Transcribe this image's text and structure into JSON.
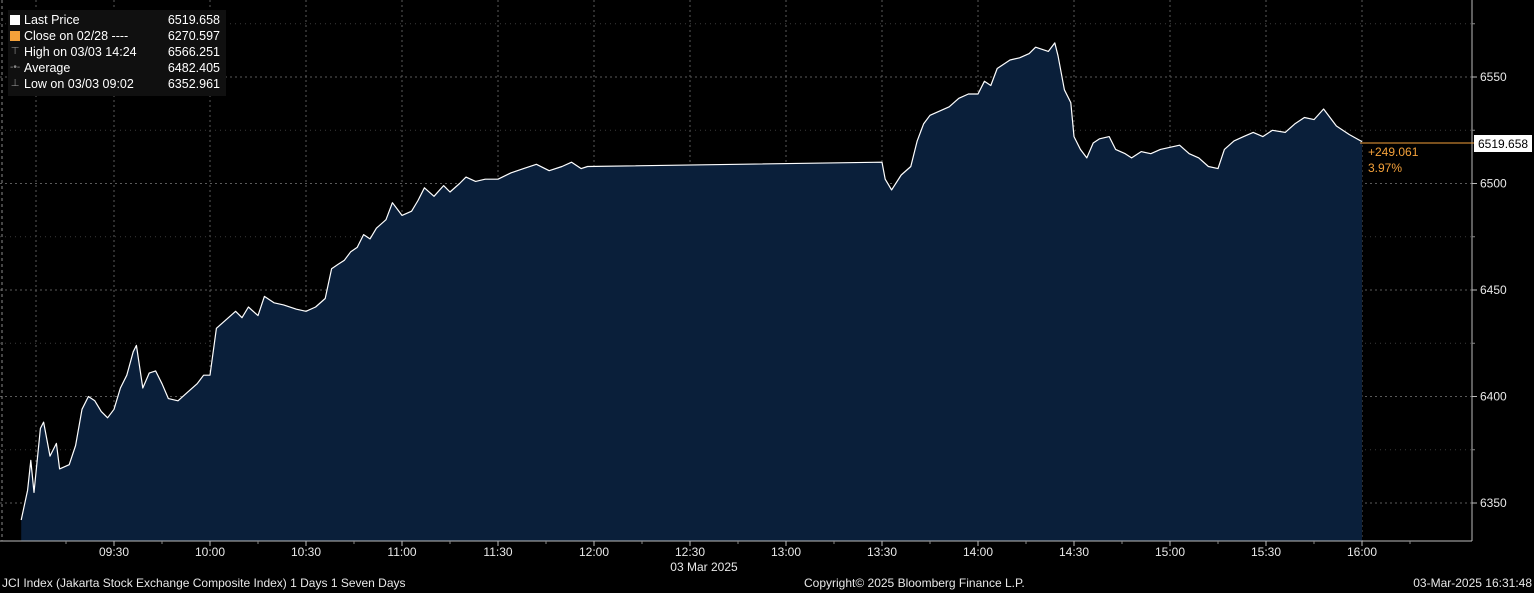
{
  "legend": {
    "last_price_label": "Last Price",
    "last_price_value": "6519.658",
    "close_label": "Close on 02/28 ----",
    "close_value": "6270.597",
    "high_label": "High on 03/03 14:24",
    "high_value": "6566.251",
    "average_label": "Average",
    "average_value": "6482.405",
    "low_label": "Low on 03/03 09:02",
    "low_value": "6352.961"
  },
  "annotations": {
    "last_price_tag": "6519.658",
    "change_value": "+249.061",
    "change_pct": "3.97%"
  },
  "footer": {
    "left": "JCI Index (Jakarta Stock Exchange Composite Index) 1 Days 1 Seven Days",
    "center": "Copyright© 2025 Bloomberg Finance L.P.",
    "right": "03-Mar-2025 16:31:48"
  },
  "colors": {
    "background": "#000000",
    "line": "#ffffff",
    "area_fill": "#0a1f3a",
    "grid": "#5a5a5a",
    "orange": "#f4a13a"
  },
  "chart_data": {
    "type": "area",
    "xlabel": "03 Mar 2025",
    "x_ticks": [
      "09:30",
      "10:00",
      "10:30",
      "11:00",
      "11:30",
      "12:00",
      "12:30",
      "13:00",
      "13:30",
      "14:00",
      "14:30",
      "15:00",
      "15:30",
      "16:00"
    ],
    "y_ticks": [
      6350,
      6400,
      6450,
      6500,
      6550
    ],
    "ylim": [
      6332,
      6580
    ],
    "grid": true,
    "legend_position": "top-left",
    "series": [
      {
        "name": "Last Price",
        "points": [
          [
            "09:01",
            6342
          ],
          [
            "09:03",
            6356
          ],
          [
            "09:04",
            6370
          ],
          [
            "09:05",
            6355
          ],
          [
            "09:07",
            6385
          ],
          [
            "09:08",
            6388
          ],
          [
            "09:10",
            6372
          ],
          [
            "09:12",
            6378
          ],
          [
            "09:13",
            6366
          ],
          [
            "09:16",
            6368
          ],
          [
            "09:18",
            6377
          ],
          [
            "09:20",
            6394
          ],
          [
            "09:22",
            6400
          ],
          [
            "09:24",
            6398
          ],
          [
            "09:26",
            6393
          ],
          [
            "09:28",
            6390
          ],
          [
            "09:30",
            6394
          ],
          [
            "09:32",
            6404
          ],
          [
            "09:34",
            6410
          ],
          [
            "09:36",
            6421
          ],
          [
            "09:37",
            6424
          ],
          [
            "09:39",
            6404
          ],
          [
            "09:41",
            6411
          ],
          [
            "09:43",
            6412
          ],
          [
            "09:45",
            6406
          ],
          [
            "09:47",
            6399
          ],
          [
            "09:50",
            6398
          ],
          [
            "09:53",
            6402
          ],
          [
            "09:56",
            6406
          ],
          [
            "09:58",
            6410
          ],
          [
            "10:00",
            6410
          ],
          [
            "10:02",
            6432
          ],
          [
            "10:05",
            6436
          ],
          [
            "10:08",
            6440
          ],
          [
            "10:10",
            6437
          ],
          [
            "10:12",
            6442
          ],
          [
            "10:15",
            6438
          ],
          [
            "10:17",
            6447
          ],
          [
            "10:20",
            6444
          ],
          [
            "10:23",
            6443
          ],
          [
            "10:27",
            6441
          ],
          [
            "10:30",
            6440
          ],
          [
            "10:33",
            6442
          ],
          [
            "10:36",
            6446
          ],
          [
            "10:38",
            6460
          ],
          [
            "10:40",
            6462
          ],
          [
            "10:42",
            6464
          ],
          [
            "10:44",
            6468
          ],
          [
            "10:46",
            6470
          ],
          [
            "10:48",
            6476
          ],
          [
            "10:50",
            6474
          ],
          [
            "10:52",
            6479
          ],
          [
            "10:55",
            6483
          ],
          [
            "10:57",
            6491
          ],
          [
            "11:00",
            6485
          ],
          [
            "11:03",
            6487
          ],
          [
            "11:05",
            6492
          ],
          [
            "11:07",
            6498
          ],
          [
            "11:10",
            6494
          ],
          [
            "11:13",
            6499
          ],
          [
            "11:15",
            6496
          ],
          [
            "11:18",
            6500
          ],
          [
            "11:20",
            6503
          ],
          [
            "11:23",
            6501
          ],
          [
            "11:26",
            6502
          ],
          [
            "11:30",
            6502
          ],
          [
            "11:34",
            6505
          ],
          [
            "11:38",
            6507
          ],
          [
            "11:42",
            6509
          ],
          [
            "11:46",
            6506
          ],
          [
            "11:50",
            6508
          ],
          [
            "11:53",
            6510
          ],
          [
            "11:56",
            6507
          ],
          [
            "11:58",
            6508
          ],
          [
            "13:30",
            6510
          ],
          [
            "13:31",
            6502
          ],
          [
            "13:33",
            6497
          ],
          [
            "13:36",
            6504
          ],
          [
            "13:39",
            6508
          ],
          [
            "13:41",
            6520
          ],
          [
            "13:43",
            6528
          ],
          [
            "13:45",
            6532
          ],
          [
            "13:48",
            6534
          ],
          [
            "13:51",
            6536
          ],
          [
            "13:54",
            6540
          ],
          [
            "13:57",
            6542
          ],
          [
            "14:00",
            6542
          ],
          [
            "14:02",
            6548
          ],
          [
            "14:04",
            6546
          ],
          [
            "14:06",
            6554
          ],
          [
            "14:08",
            6556
          ],
          [
            "14:10",
            6558
          ],
          [
            "14:13",
            6559
          ],
          [
            "14:16",
            6561
          ],
          [
            "14:18",
            6564
          ],
          [
            "14:20",
            6563
          ],
          [
            "14:22",
            6562
          ],
          [
            "14:24",
            6566
          ],
          [
            "14:25",
            6560
          ],
          [
            "14:27",
            6544
          ],
          [
            "14:29",
            6538
          ],
          [
            "14:30",
            6522
          ],
          [
            "14:32",
            6516
          ],
          [
            "14:34",
            6512
          ],
          [
            "14:36",
            6519
          ],
          [
            "14:38",
            6521
          ],
          [
            "14:41",
            6522
          ],
          [
            "14:43",
            6516
          ],
          [
            "14:46",
            6514
          ],
          [
            "14:48",
            6512
          ],
          [
            "14:51",
            6515
          ],
          [
            "14:54",
            6514
          ],
          [
            "14:57",
            6516
          ],
          [
            "15:00",
            6517
          ],
          [
            "15:03",
            6518
          ],
          [
            "15:06",
            6514
          ],
          [
            "15:09",
            6512
          ],
          [
            "15:12",
            6508
          ],
          [
            "15:15",
            6507
          ],
          [
            "15:17",
            6516
          ],
          [
            "15:20",
            6520
          ],
          [
            "15:23",
            6522
          ],
          [
            "15:26",
            6524
          ],
          [
            "15:29",
            6522
          ],
          [
            "15:32",
            6525
          ],
          [
            "15:36",
            6524
          ],
          [
            "15:39",
            6528
          ],
          [
            "15:42",
            6531
          ],
          [
            "15:45",
            6530
          ],
          [
            "15:48",
            6535
          ],
          [
            "15:52",
            6527
          ],
          [
            "15:56",
            6523
          ],
          [
            "16:00",
            6519.658
          ]
        ]
      }
    ]
  }
}
